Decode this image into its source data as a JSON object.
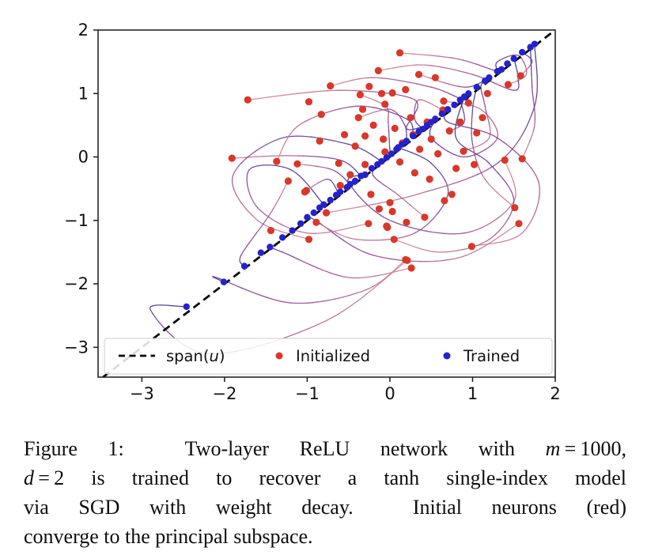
{
  "page": {
    "background": "#ffffff"
  },
  "caption": {
    "lines": [
      [
        {
          "t": "Figure 1:  Two-layer ReLU network with ",
          "i": false
        },
        {
          "t": "m",
          "i": true
        },
        {
          "t": " = 1000,",
          "i": false
        }
      ],
      [
        {
          "t": "d",
          "i": true
        },
        {
          "t": " = 2 is trained to recover a tanh single-index model",
          "i": false
        }
      ],
      [
        {
          "t": "via SGD with weight decay.  Initial neurons (red)",
          "i": false
        }
      ],
      [
        {
          "t": "converge to the principal subspace.",
          "i": false
        }
      ]
    ]
  },
  "chart_data": {
    "type": "scatter",
    "title": "",
    "xlabel": "",
    "ylabel": "",
    "xlim": [
      -3.53,
      2
    ],
    "ylim": [
      -3.47,
      2
    ],
    "xticks": [
      -3,
      -2,
      -1,
      0,
      1,
      2
    ],
    "yticks": [
      2,
      1,
      0,
      -1,
      -2,
      -3
    ],
    "xtick_labels": [
      "−3",
      "−2",
      "−1",
      "0",
      "1",
      "2"
    ],
    "ytick_labels": [
      "2",
      "1",
      "0",
      "−1",
      "−2",
      "−3"
    ],
    "grid": false,
    "legend_position": "lower center, expanded inside axes",
    "diagonal_line": {
      "equation": "y = x",
      "from": [
        -3.47,
        -3.47
      ],
      "to": [
        2,
        2
      ],
      "style": "dashed",
      "color": "#0a0a0a",
      "label_parts": {
        "pre": "span(",
        "italic": "u",
        "post": ")"
      }
    },
    "colors": {
      "initialized": "#d9372a",
      "trained": "#2522cc",
      "trajectory_start": "#d98f96",
      "trajectory_mid": "#8d4490",
      "trajectory_end": "#342d8f",
      "spine": "#1a1a1a",
      "legend_border": "#cccccc"
    },
    "series": [
      {
        "name": "Initialized",
        "marker": "circle",
        "color": "#d9372a",
        "points": [
          [
            -1.72,
            0.9
          ],
          [
            -0.98,
            0.87
          ],
          [
            -0.83,
            0.67
          ],
          [
            -1.91,
            -0.02
          ],
          [
            -1.37,
            -0.07
          ],
          [
            -1.12,
            -0.11
          ],
          [
            -1.23,
            -0.38
          ],
          [
            -1.01,
            -0.53
          ],
          [
            0.12,
            1.64
          ],
          [
            -0.14,
            1.36
          ],
          [
            -0.72,
            1.12
          ],
          [
            -0.25,
            1.11
          ],
          [
            -0.1,
            1.0
          ],
          [
            -0.36,
            0.98
          ],
          [
            0.03,
            1.01
          ],
          [
            0.19,
            1.06
          ],
          [
            -0.33,
            0.75
          ],
          [
            -0.06,
            0.83
          ],
          [
            -0.38,
            0.62
          ],
          [
            0.65,
            0.88
          ],
          [
            0.64,
            0.74
          ],
          [
            1.43,
            1.14
          ],
          [
            1.39,
            -0.05
          ],
          [
            0.89,
            0.09
          ],
          [
            0.72,
            0.41
          ],
          [
            1.51,
            -0.8
          ],
          [
            1.56,
            -1.05
          ],
          [
            0.99,
            -1.41
          ],
          [
            0.21,
            -1.63
          ],
          [
            0.26,
            -1.75
          ],
          [
            0.05,
            -1.3
          ],
          [
            0.42,
            -0.95
          ],
          [
            -0.03,
            -1.11
          ],
          [
            -0.26,
            -1.05
          ],
          [
            0.03,
            -0.86
          ],
          [
            -1.03,
            -0.55
          ],
          [
            -0.77,
            -0.88
          ],
          [
            -0.89,
            -1.03
          ],
          [
            -0.98,
            -1.3
          ],
          [
            -0.04,
            -1.09
          ],
          [
            0.2,
            -1.03
          ],
          [
            0.19,
            -1.62
          ],
          [
            0.66,
            -0.69
          ],
          [
            0.75,
            -0.59
          ],
          [
            -0.13,
            -0.82
          ],
          [
            -0.23,
            -0.59
          ],
          [
            0.0,
            -0.72
          ],
          [
            -0.55,
            0.35
          ],
          [
            -0.42,
            0.17
          ],
          [
            -0.3,
            0.33
          ],
          [
            -0.2,
            0.5
          ],
          [
            -0.08,
            0.28
          ],
          [
            0.06,
            0.45
          ],
          [
            0.15,
            0.22
          ],
          [
            0.28,
            0.35
          ],
          [
            0.36,
            0.12
          ],
          [
            0.5,
            0.28
          ],
          [
            0.58,
            0.05
          ],
          [
            0.12,
            -0.08
          ],
          [
            -0.06,
            0.08
          ],
          [
            -0.3,
            -0.12
          ],
          [
            -0.48,
            -0.28
          ],
          [
            -0.62,
            -0.1
          ],
          [
            0.3,
            -0.25
          ],
          [
            0.48,
            -0.35
          ],
          [
            0.25,
            0.62
          ],
          [
            0.45,
            0.55
          ],
          [
            0.85,
            0.55
          ],
          [
            1.05,
            0.38
          ],
          [
            1.12,
            0.62
          ],
          [
            0.95,
            0.85
          ],
          [
            1.18,
            1.0
          ],
          [
            -0.6,
            -0.45
          ],
          [
            -0.85,
            0.25
          ],
          [
            0.8,
            -0.18
          ],
          [
            1.02,
            -0.12
          ],
          [
            0.35,
            1.3
          ],
          [
            0.55,
            1.25
          ],
          [
            1.58,
            1.28
          ],
          [
            1.6,
            -0.03
          ],
          [
            -1.44,
            -1.16
          ]
        ]
      },
      {
        "name": "Trained",
        "marker": "circle",
        "color": "#2522cc",
        "points": [
          [
            -2.46,
            -2.36
          ],
          [
            -2.01,
            -1.97
          ],
          [
            -1.76,
            -1.72
          ],
          [
            -1.56,
            -1.51
          ],
          [
            -1.45,
            -1.42
          ],
          [
            -1.3,
            -1.27
          ],
          [
            -1.18,
            -1.16
          ],
          [
            -1.08,
            -1.05
          ],
          [
            -1.0,
            -0.95
          ],
          [
            -0.92,
            -0.88
          ],
          [
            -0.85,
            -0.8
          ],
          [
            -0.8,
            -0.75
          ],
          [
            -0.72,
            -0.68
          ],
          [
            -0.65,
            -0.6
          ],
          [
            -0.6,
            -0.55
          ],
          [
            -0.52,
            -0.48
          ],
          [
            -0.48,
            -0.43
          ],
          [
            -0.42,
            -0.38
          ],
          [
            -0.35,
            -0.3
          ],
          [
            -0.3,
            -0.28
          ],
          [
            -0.22,
            -0.18
          ],
          [
            -0.15,
            -0.12
          ],
          [
            -0.1,
            -0.07
          ],
          [
            -0.04,
            -0.01
          ],
          [
            0.02,
            0.05
          ],
          [
            0.08,
            0.12
          ],
          [
            0.1,
            0.15
          ],
          [
            0.15,
            0.2
          ],
          [
            0.2,
            0.25
          ],
          [
            0.28,
            0.33
          ],
          [
            0.35,
            0.4
          ],
          [
            0.4,
            0.44
          ],
          [
            0.45,
            0.5
          ],
          [
            0.5,
            0.55
          ],
          [
            0.55,
            0.6
          ],
          [
            0.63,
            0.68
          ],
          [
            0.7,
            0.75
          ],
          [
            0.78,
            0.82
          ],
          [
            0.85,
            0.9
          ],
          [
            0.9,
            0.95
          ],
          [
            0.95,
            1.0
          ],
          [
            1.05,
            1.1
          ],
          [
            1.15,
            1.2
          ],
          [
            1.2,
            1.25
          ],
          [
            1.3,
            1.35
          ],
          [
            1.35,
            1.38
          ],
          [
            1.42,
            1.47
          ],
          [
            1.5,
            1.55
          ],
          [
            1.6,
            1.65
          ],
          [
            1.7,
            1.73
          ],
          [
            1.75,
            1.78
          ]
        ]
      }
    ],
    "trajectories": [
      [
        [
          -1.72,
          0.9
        ],
        [
          -0.6,
          1.05
        ],
        [
          0.3,
          0.9
        ],
        [
          0.2,
          0.45
        ],
        [
          0.45,
          0.5
        ]
      ],
      [
        [
          -1.91,
          -0.02
        ],
        [
          -1.2,
          0.02
        ],
        [
          -0.6,
          -0.05
        ],
        [
          -0.35,
          -0.3
        ]
      ],
      [
        [
          0.12,
          1.64
        ],
        [
          0.8,
          1.55
        ],
        [
          1.3,
          1.35
        ],
        [
          1.35,
          1.38
        ]
      ],
      [
        [
          1.43,
          1.14
        ],
        [
          1.65,
          1.3
        ],
        [
          1.55,
          1.6
        ],
        [
          1.3,
          1.5
        ],
        [
          1.3,
          1.35
        ]
      ],
      [
        [
          1.39,
          -0.05
        ],
        [
          1.5,
          -0.7
        ],
        [
          0.9,
          -1.2
        ],
        [
          0.0,
          -1.0
        ],
        [
          -0.5,
          -0.4
        ],
        [
          -0.3,
          -0.28
        ]
      ],
      [
        [
          1.56,
          -1.05
        ],
        [
          0.8,
          -1.6
        ],
        [
          -0.2,
          -1.55
        ],
        [
          -0.9,
          -1.0
        ],
        [
          -1.0,
          -0.95
        ]
      ],
      [
        [
          0.26,
          -1.75
        ],
        [
          -0.5,
          -1.9
        ],
        [
          -1.3,
          -1.5
        ],
        [
          -1.45,
          -1.42
        ]
      ],
      [
        [
          -0.98,
          -1.3
        ],
        [
          -1.6,
          -1.0
        ],
        [
          -1.9,
          -0.3
        ],
        [
          -1.3,
          0.3
        ],
        [
          -0.5,
          0.2
        ],
        [
          -0.1,
          -0.07
        ]
      ],
      [
        [
          -1.37,
          -0.07
        ],
        [
          -1.1,
          0.5
        ],
        [
          -0.4,
          0.8
        ],
        [
          0.2,
          0.6
        ],
        [
          0.28,
          0.33
        ]
      ],
      [
        [
          0.65,
          0.88
        ],
        [
          1.1,
          0.75
        ],
        [
          1.3,
          0.3
        ],
        [
          0.9,
          0.0
        ],
        [
          0.5,
          0.3
        ],
        [
          0.55,
          0.6
        ]
      ],
      [
        [
          -0.72,
          1.12
        ],
        [
          -0.2,
          1.25
        ],
        [
          0.5,
          1.1
        ],
        [
          0.9,
          0.9
        ],
        [
          0.95,
          1.0
        ]
      ],
      [
        [
          0.99,
          -1.41
        ],
        [
          1.6,
          -1.2
        ],
        [
          1.8,
          -0.4
        ],
        [
          1.3,
          0.3
        ],
        [
          0.7,
          0.55
        ],
        [
          0.7,
          0.75
        ]
      ],
      [
        [
          -0.26,
          -1.05
        ],
        [
          -1.0,
          -1.2
        ],
        [
          -1.6,
          -0.8
        ],
        [
          -1.7,
          -0.2
        ],
        [
          -1.2,
          -0.2
        ],
        [
          -0.8,
          -0.75
        ]
      ],
      [
        [
          0.72,
          0.41
        ],
        [
          0.9,
          0.55
        ],
        [
          0.85,
          0.9
        ]
      ],
      [
        [
          -1.12,
          -0.11
        ],
        [
          -0.7,
          -0.2
        ],
        [
          -0.48,
          -0.43
        ]
      ],
      [
        [
          0.89,
          0.09
        ],
        [
          1.2,
          0.3
        ],
        [
          1.15,
          0.8
        ],
        [
          1.1,
          1.1
        ],
        [
          1.15,
          1.2
        ]
      ],
      [
        [
          1.58,
          1.28
        ],
        [
          1.72,
          1.5
        ],
        [
          1.6,
          1.65
        ]
      ],
      [
        [
          -0.89,
          -1.03
        ],
        [
          -0.4,
          -1.3
        ],
        [
          0.3,
          -1.2
        ],
        [
          0.7,
          -0.6
        ],
        [
          0.5,
          -0.1
        ],
        [
          0.1,
          0.15
        ]
      ],
      [
        [
          0.42,
          -0.95
        ],
        [
          0.1,
          -0.6
        ],
        [
          -0.2,
          -0.3
        ],
        [
          -0.15,
          -0.12
        ]
      ],
      [
        [
          -0.14,
          1.36
        ],
        [
          0.4,
          1.45
        ],
        [
          1.0,
          1.3
        ],
        [
          1.5,
          1.05
        ],
        [
          1.55,
          1.25
        ],
        [
          1.5,
          1.55
        ]
      ],
      [
        [
          0.05,
          -1.3
        ],
        [
          0.6,
          -1.5
        ],
        [
          1.2,
          -1.3
        ],
        [
          1.5,
          -0.7
        ],
        [
          1.2,
          -0.1
        ],
        [
          0.8,
          0.3
        ],
        [
          0.9,
          0.95
        ]
      ],
      [
        [
          -1.01,
          -0.53
        ],
        [
          -0.75,
          -0.35
        ],
        [
          -0.62,
          -0.58
        ]
      ],
      [
        [
          0.35,
          1.3
        ],
        [
          0.9,
          1.1
        ],
        [
          1.2,
          1.25
        ]
      ],
      [
        [
          -0.38,
          0.62
        ],
        [
          0.0,
          0.75
        ],
        [
          0.18,
          0.5
        ],
        [
          0.2,
          0.25
        ]
      ],
      [
        [
          1.51,
          -0.8
        ],
        [
          1.15,
          -0.35
        ],
        [
          1.0,
          0.2
        ],
        [
          1.0,
          0.75
        ],
        [
          1.05,
          1.1
        ]
      ],
      [
        [
          0.19,
          -1.62
        ],
        [
          -0.3,
          -2.1
        ],
        [
          -1.2,
          -2.3
        ],
        [
          -2.1,
          -1.9
        ],
        [
          -2.01,
          -1.97
        ]
      ],
      [
        [
          -1.23,
          -0.38
        ],
        [
          -1.45,
          -0.9
        ],
        [
          -1.8,
          -1.55
        ],
        [
          -1.76,
          -1.72
        ]
      ],
      [
        [
          0.64,
          0.74
        ],
        [
          0.35,
          0.9
        ],
        [
          0.3,
          0.6
        ],
        [
          0.4,
          0.44
        ]
      ],
      [
        [
          -0.36,
          0.98
        ],
        [
          -0.05,
          0.8
        ],
        [
          -0.02,
          0.55
        ],
        [
          0.0,
          0.1
        ],
        [
          0.02,
          0.05
        ]
      ],
      [
        [
          1.6,
          -0.03
        ],
        [
          1.75,
          0.5
        ],
        [
          1.72,
          1.1
        ],
        [
          1.7,
          1.73
        ]
      ],
      [
        [
          0.21,
          -1.63
        ],
        [
          -0.8,
          -2.6
        ],
        [
          -2.2,
          -3.1
        ],
        [
          -2.9,
          -2.4
        ],
        [
          -2.46,
          -2.36
        ]
      ],
      [
        [
          -0.77,
          -0.88
        ],
        [
          0.3,
          -0.6
        ],
        [
          1.3,
          -0.1
        ],
        [
          1.75,
          0.8
        ],
        [
          1.75,
          1.78
        ]
      ]
    ]
  }
}
